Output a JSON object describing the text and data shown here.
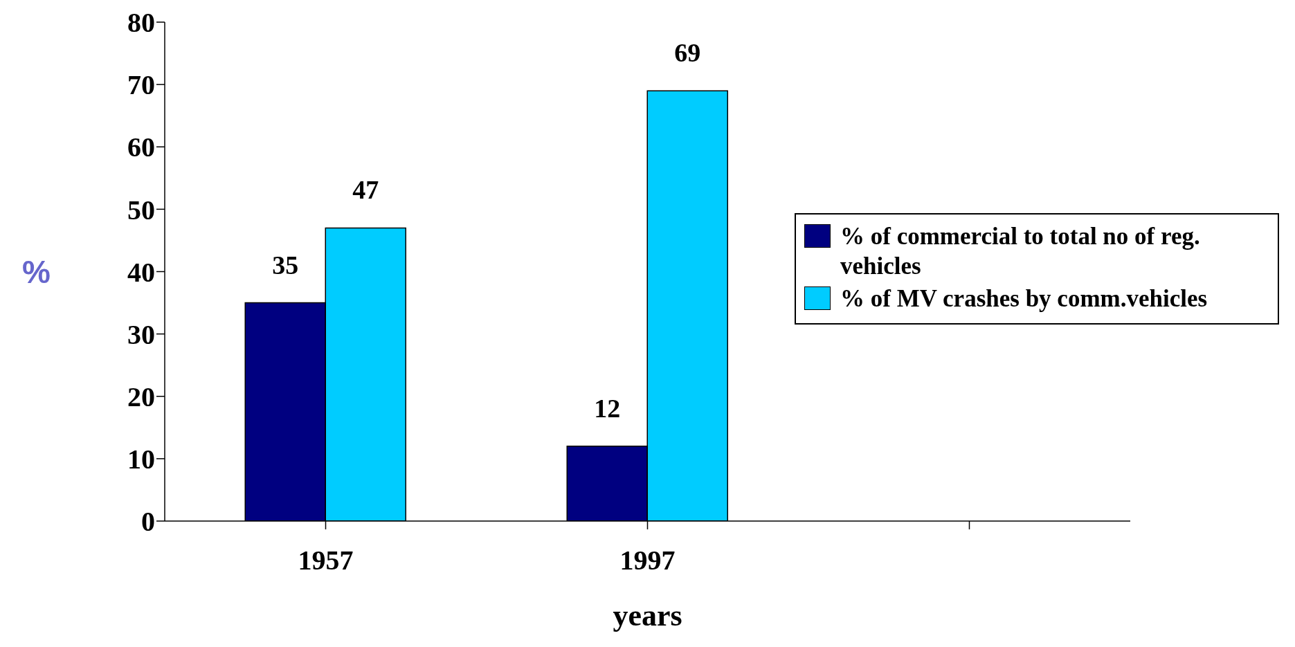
{
  "chart_data": {
    "type": "bar",
    "xlabel": "years",
    "ylabel": "%",
    "categories": [
      "1957",
      "1997",
      null
    ],
    "series": [
      {
        "name": "% of commercial to total no of reg. vehicles",
        "color": "#000080",
        "values": [
          35,
          12,
          null
        ]
      },
      {
        "name": "% of MV crashes by comm.vehicles",
        "color": "#00ccff",
        "values": [
          47,
          69,
          null
        ]
      }
    ],
    "ylim": [
      0,
      80
    ],
    "yticks": [
      0,
      10,
      20,
      30,
      40,
      50,
      60,
      70,
      80
    ],
    "grid": false,
    "legend": "right",
    "data_labels": true
  }
}
